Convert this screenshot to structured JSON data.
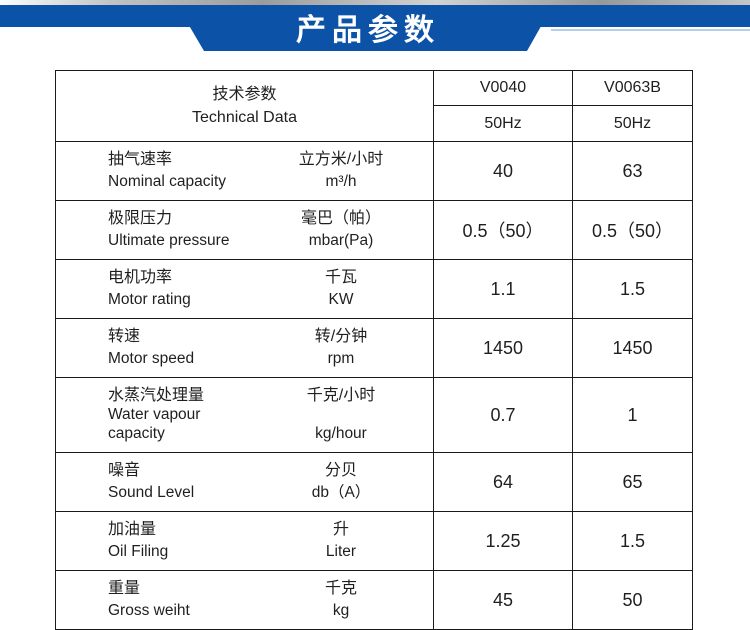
{
  "colors": {
    "accent_blue": "#0c52a7",
    "light_blue_line": "#b7cde9"
  },
  "banner": {
    "title": "产品参数"
  },
  "table": {
    "header": {
      "param_label_cn": "技术参数",
      "param_label_en": "Technical Data",
      "model_1": "V0040",
      "model_2": "V0063B",
      "freq_1": "50Hz",
      "freq_2": "50Hz"
    },
    "rows": [
      {
        "name_cn": "抽气速率",
        "name_en": "Nominal capacity",
        "unit_cn": "立方米/小时",
        "unit_en": "m³/h",
        "v0040": "40",
        "v0063b": "63"
      },
      {
        "name_cn": "极限压力",
        "name_en": "Ultimate pressure",
        "unit_cn": "毫巴（帕）",
        "unit_en": "mbar(Pa)",
        "v0040": "0.5（50）",
        "v0063b": "0.5（50）"
      },
      {
        "name_cn": "电机功率",
        "name_en": "Motor rating",
        "unit_cn": "千瓦",
        "unit_en": "KW",
        "v0040": "1.1",
        "v0063b": "1.5"
      },
      {
        "name_cn": "转速",
        "name_en": "Motor speed",
        "unit_cn": "转/分钟",
        "unit_en": "rpm",
        "v0040": "1450",
        "v0063b": "1450"
      },
      {
        "name_cn": "水蒸汽处理量",
        "name_en": "Water vapour capacity",
        "unit_cn": "千克/小时",
        "unit_en": "kg/hour",
        "v0040": "0.7",
        "v0063b": "1"
      },
      {
        "name_cn": "噪音",
        "name_en": "Sound Level",
        "unit_cn": "分贝",
        "unit_en": "db（A）",
        "v0040": "64",
        "v0063b": "65"
      },
      {
        "name_cn": "加油量",
        "name_en": "Oil Filing",
        "unit_cn": "升",
        "unit_en": "Liter",
        "v0040": "1.25",
        "v0063b": "1.5"
      },
      {
        "name_cn": "重量",
        "name_en": "Gross weiht",
        "unit_cn": "千克",
        "unit_en": "kg",
        "v0040": "45",
        "v0063b": "50"
      }
    ]
  }
}
